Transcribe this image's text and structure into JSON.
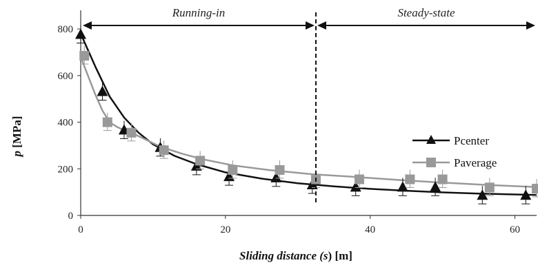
{
  "chart_data": {
    "type": "scatter",
    "xlabel": {
      "prefix": "Sliding distance (",
      "symbol": "s",
      "suffix": ") [m]"
    },
    "ylabel": {
      "symbol": "p",
      "suffix": " [MPa]"
    },
    "xlim": [
      0,
      63
    ],
    "ylim": [
      0,
      880
    ],
    "xticks": [
      0,
      20,
      40,
      60
    ],
    "yticks": [
      0,
      200,
      400,
      600,
      800
    ],
    "grid": false,
    "legend_position": "right",
    "boundary_x": 32.5,
    "phases": [
      {
        "label": "Running-in",
        "from": 0,
        "to": 32.5
      },
      {
        "label": "Steady-state",
        "from": 32.5,
        "to": 63
      }
    ],
    "series": [
      {
        "name": "Pcenter",
        "marker": "triangle",
        "color": "#111111",
        "points": [
          [
            0,
            775
          ],
          [
            3,
            530
          ],
          [
            6,
            365
          ],
          [
            11,
            290
          ],
          [
            16,
            210
          ],
          [
            20.5,
            165
          ],
          [
            27,
            160
          ],
          [
            32,
            130
          ],
          [
            38,
            120
          ],
          [
            44.5,
            120
          ],
          [
            49,
            120
          ],
          [
            55.5,
            85
          ],
          [
            61.5,
            85
          ]
        ],
        "fit": [
          [
            0,
            780
          ],
          [
            2,
            640
          ],
          [
            4,
            510
          ],
          [
            6,
            420
          ],
          [
            8,
            355
          ],
          [
            10,
            305
          ],
          [
            13,
            255
          ],
          [
            16,
            220
          ],
          [
            20,
            185
          ],
          [
            25,
            158
          ],
          [
            30,
            138
          ],
          [
            35,
            125
          ],
          [
            40,
            114
          ],
          [
            45,
            106
          ],
          [
            50,
            99
          ],
          [
            55,
            94
          ],
          [
            60,
            90
          ],
          [
            63,
            88
          ]
        ]
      },
      {
        "name": "Paverage",
        "marker": "square",
        "color": "#999999",
        "points": [
          [
            0.5,
            685
          ],
          [
            3.7,
            400
          ],
          [
            7,
            355
          ],
          [
            11.5,
            280
          ],
          [
            16.5,
            235
          ],
          [
            21,
            195
          ],
          [
            27.5,
            195
          ],
          [
            32.5,
            155
          ],
          [
            38.5,
            155
          ],
          [
            45.5,
            155
          ],
          [
            50,
            155
          ],
          [
            56.5,
            120
          ],
          [
            63,
            115
          ]
        ],
        "fit": [
          [
            0,
            680
          ],
          [
            1,
            600
          ],
          [
            2,
            520
          ],
          [
            3,
            450
          ],
          [
            4,
            400
          ],
          [
            5,
            380
          ],
          [
            6,
            365
          ],
          [
            7,
            355
          ],
          [
            9,
            325
          ],
          [
            11,
            295
          ],
          [
            14,
            265
          ],
          [
            17,
            240
          ],
          [
            21,
            215
          ],
          [
            26,
            195
          ],
          [
            32,
            177
          ],
          [
            38,
            165
          ],
          [
            44,
            152
          ],
          [
            50,
            141
          ],
          [
            56,
            131
          ],
          [
            63,
            122
          ]
        ]
      }
    ]
  }
}
